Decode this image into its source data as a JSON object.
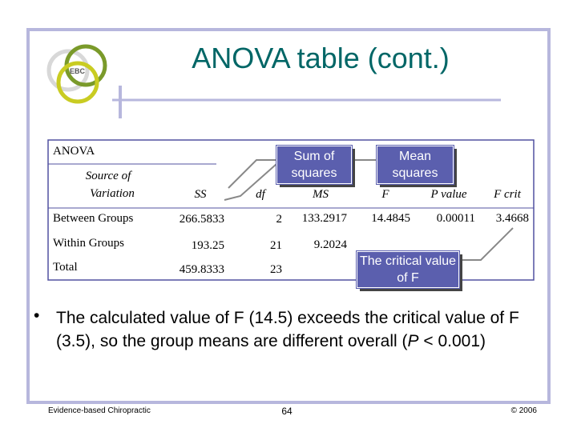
{
  "header": {
    "title": "ANOVA table (cont.)",
    "logo": "EBC"
  },
  "table": {
    "caption": "ANOVA",
    "columns": [
      [
        "Source of",
        "Variation"
      ],
      "SS",
      "df",
      "MS",
      "F",
      "P value",
      "F crit"
    ],
    "rows": [
      [
        "Between Groups",
        "266.5833",
        "2",
        "133.2917",
        "14.4845",
        "0.00011",
        "3.4668"
      ],
      [
        "Within Groups",
        "193.25",
        "21",
        "9.2024"
      ],
      [
        "Total",
        "459.8333",
        "23"
      ]
    ]
  },
  "callouts": [
    "Sum of squares",
    "Mean squares",
    "The critical value of F"
  ],
  "bullet": {
    "before": "The calculated value of F (14.5) exceeds the critical value of F (3.5), so the group means are different overall (",
    "italic": "P",
    "after": " < 0.001)"
  },
  "footer": {
    "left": "Evidence-based Chiropractic",
    "center": "64",
    "right": "© 2006"
  }
}
